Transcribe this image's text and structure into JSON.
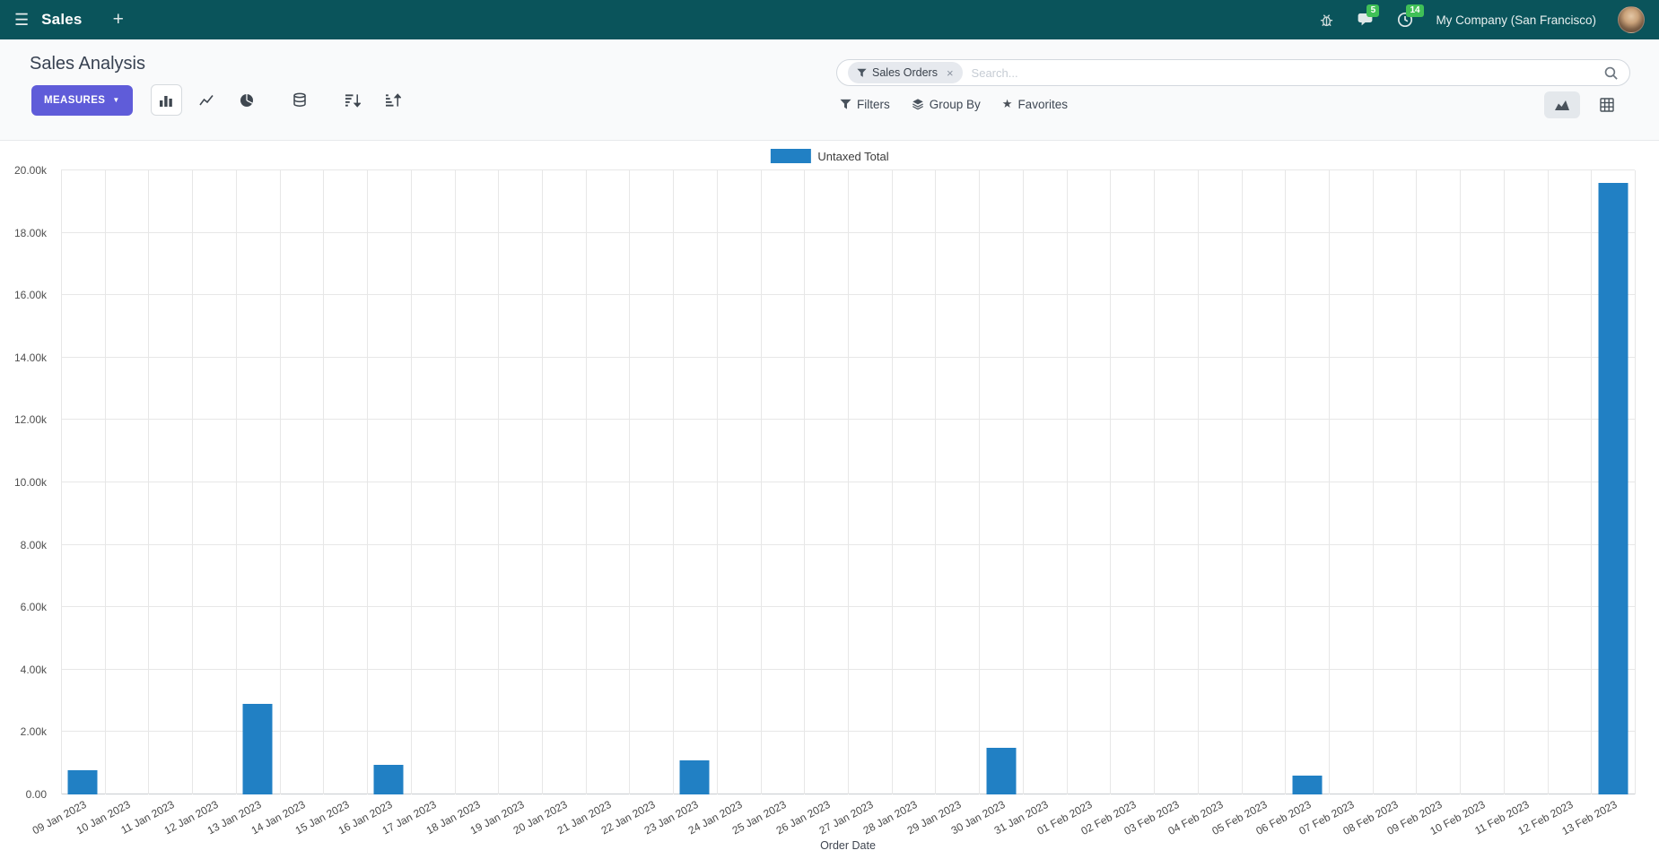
{
  "navbar": {
    "app_name": "Sales",
    "new_tab": "+",
    "chat_badge": "5",
    "activity_badge": "14",
    "company": "My Company (San Francisco)"
  },
  "control_panel": {
    "title": "Sales Analysis",
    "measures": "MEASURES",
    "buttons": {
      "filters": "Filters",
      "group_by": "Group By",
      "favorites": "Favorites"
    },
    "search": {
      "facet_label": "Sales Orders",
      "facet_remove": "×",
      "placeholder": "Search..."
    }
  },
  "colors": {
    "navbar_bg": "#0a545b",
    "primary_button": "#5f5cd9",
    "bar_color": "#2180c4",
    "badge_green": "#40c057"
  },
  "chart_data": {
    "type": "bar",
    "legend": [
      "Untaxed Total"
    ],
    "legend_position": "top",
    "series_color": "#2180c4",
    "xlabel": "Order Date",
    "ylabel": "",
    "ylim": [
      0,
      20000
    ],
    "ytick_step": 2000,
    "grid": true,
    "categories": [
      "09 Jan 2023",
      "10 Jan 2023",
      "11 Jan 2023",
      "12 Jan 2023",
      "13 Jan 2023",
      "14 Jan 2023",
      "15 Jan 2023",
      "16 Jan 2023",
      "17 Jan 2023",
      "18 Jan 2023",
      "19 Jan 2023",
      "20 Jan 2023",
      "21 Jan 2023",
      "22 Jan 2023",
      "23 Jan 2023",
      "24 Jan 2023",
      "25 Jan 2023",
      "26 Jan 2023",
      "27 Jan 2023",
      "28 Jan 2023",
      "29 Jan 2023",
      "30 Jan 2023",
      "31 Jan 2023",
      "01 Feb 2023",
      "02 Feb 2023",
      "03 Feb 2023",
      "04 Feb 2023",
      "05 Feb 2023",
      "06 Feb 2023",
      "07 Feb 2023",
      "08 Feb 2023",
      "09 Feb 2023",
      "10 Feb 2023",
      "11 Feb 2023",
      "12 Feb 2023",
      "13 Feb 2023"
    ],
    "values": [
      780,
      0,
      0,
      0,
      2900,
      0,
      0,
      950,
      0,
      0,
      0,
      0,
      0,
      0,
      1080,
      0,
      0,
      0,
      0,
      0,
      0,
      1500,
      0,
      0,
      0,
      0,
      0,
      0,
      610,
      0,
      0,
      0,
      0,
      0,
      0,
      19600
    ]
  }
}
